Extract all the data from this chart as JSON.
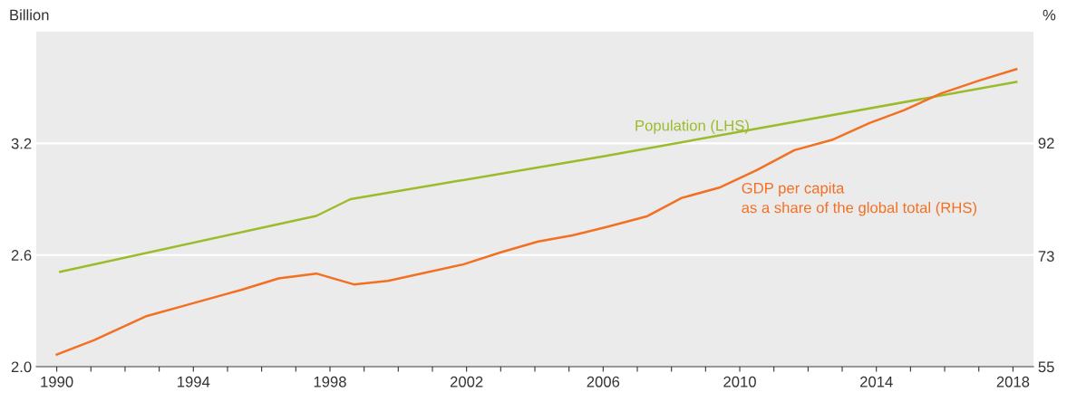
{
  "chart_data": {
    "type": "line",
    "ylabel": "Billion",
    "y2label": "%",
    "xlim": [
      1989.4,
      2018.6
    ],
    "xticks": [
      1990,
      {
        "value": 1991,
        "label": null
      },
      {
        "value": 1992,
        "label": null
      },
      {
        "value": 1993,
        "label": null
      },
      1994,
      {
        "value": 1995,
        "label": null
      },
      {
        "value": 1996,
        "label": null
      },
      {
        "value": 1997,
        "label": null
      },
      1998,
      {
        "value": 1999,
        "label": null
      },
      {
        "value": 2000,
        "label": null
      },
      {
        "value": 2001,
        "label": null
      },
      2002,
      {
        "value": 2003,
        "label": null
      },
      {
        "value": 2004,
        "label": null
      },
      {
        "value": 2005,
        "label": null
      },
      2006,
      {
        "value": 2007,
        "label": null
      },
      {
        "value": 2008,
        "label": null
      },
      {
        "value": 2009,
        "label": null
      },
      2010,
      {
        "value": 2011,
        "label": null
      },
      {
        "value": 2012,
        "label": null
      },
      {
        "value": 2013,
        "label": null
      },
      2014,
      {
        "value": 2015,
        "label": null
      },
      {
        "value": 2016,
        "label": null
      },
      {
        "value": 2017,
        "label": null
      },
      2018
    ],
    "ylim": [
      2.0,
      3.8
    ],
    "yticks": [
      {
        "value": 2.0,
        "label": "2.0"
      },
      2.6,
      3.2
    ],
    "y2lim": [
      55,
      110.4
    ],
    "y2ticks": [
      55,
      {
        "value": 73.3,
        "label": "73"
      },
      92
    ],
    "grid": "y",
    "legend": false,
    "marker": "none",
    "line_style": "solid",
    "series": [
      {
        "name": "Population (LHS)",
        "color": "#9bbb2a",
        "x": [
          1990.1,
          1997.6,
          1998.6,
          2006,
          2018.1
        ],
        "values": [
          2.51,
          2.81,
          2.9,
          3.13,
          3.53
        ]
      },
      {
        "name": "GDP per capita\nas a share of the global total (RHS)",
        "color": "#f36f21",
        "axis": "y2",
        "x": [
          1990,
          1991.1,
          1992.6,
          1994,
          1995.4,
          1996.5,
          1997.6,
          1998.7,
          1999.7,
          2001.9,
          2003,
          2004.1,
          2005.1,
          2006.1,
          2007.3,
          2008.3,
          2009.4,
          2010.5,
          2011.6,
          2012.7,
          2013.8,
          2014.8,
          2015.9,
          2017,
          2018.1
        ],
        "values": [
          57.0,
          59.4,
          63.3,
          65.5,
          67.7,
          69.6,
          70.4,
          68.6,
          69.2,
          71.9,
          73.9,
          75.7,
          76.7,
          78.1,
          79.9,
          82.9,
          84.6,
          87.5,
          90.8,
          92.5,
          95.3,
          97.4,
          100.2,
          102.3,
          104.2
        ]
      }
    ]
  }
}
